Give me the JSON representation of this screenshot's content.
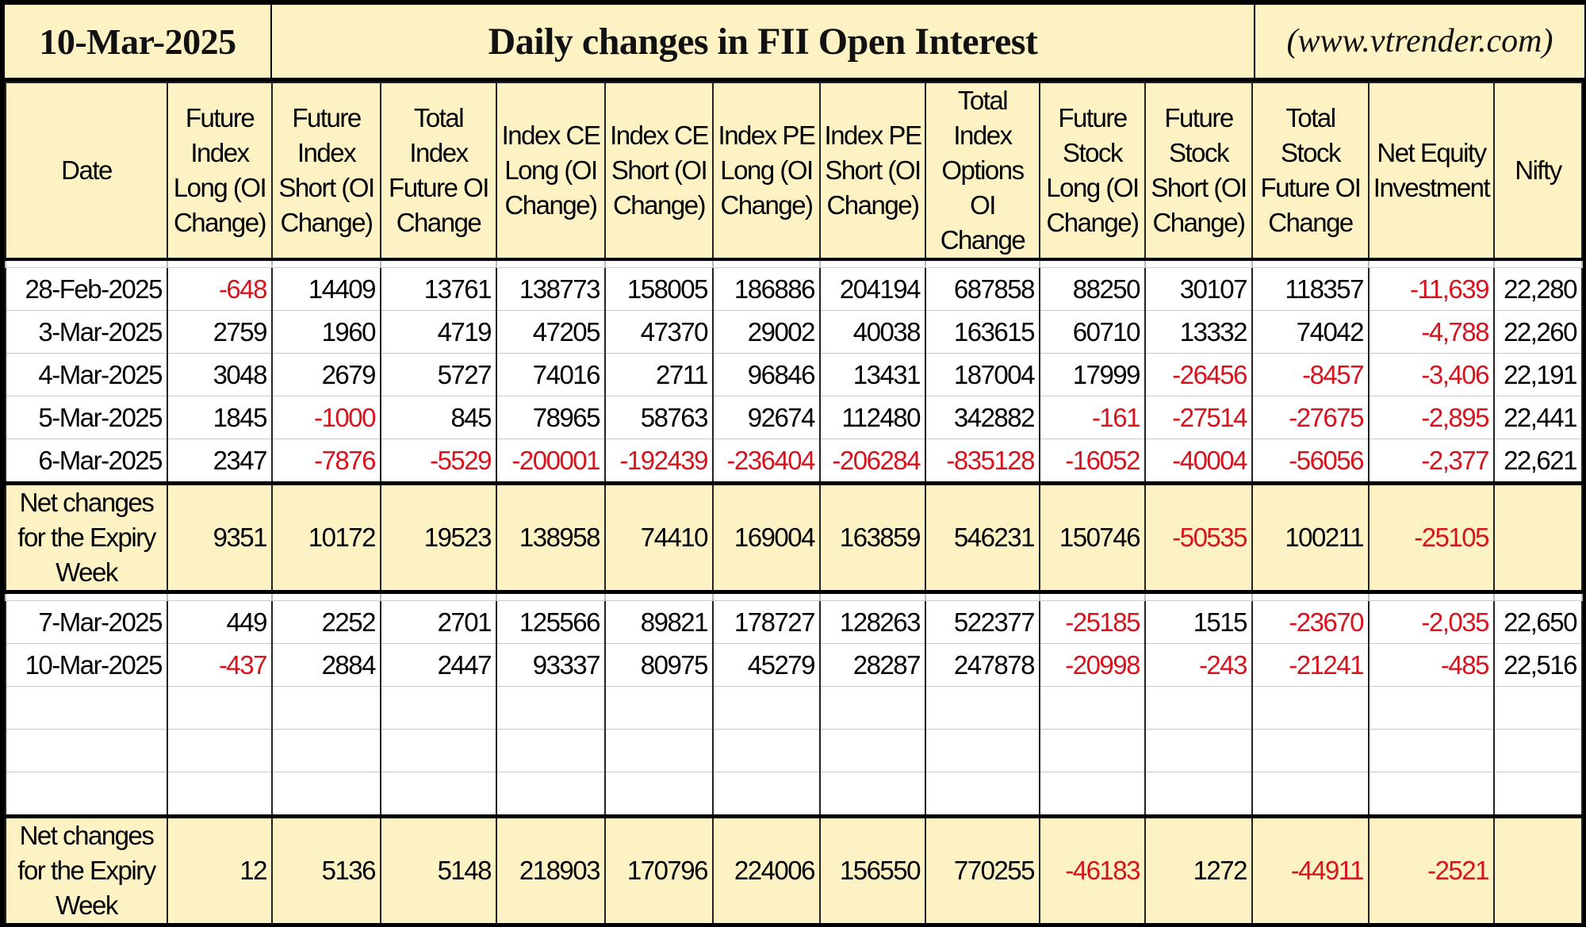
{
  "header": {
    "date": "10-Mar-2025",
    "title": "Daily changes in FII Open Interest",
    "site": "(www.vtrender.com)"
  },
  "columns": [
    "Date",
    "Future Index Long (OI Change)",
    "Future Index Short (OI Change)",
    "Total Index Future OI Change",
    "Index CE Long (OI Change)",
    "Index CE Short (OI Change)",
    "Index PE Long (OI Change)",
    "Index PE Short (OI Change)",
    "Total Index Options OI Change",
    "Future Stock Long (OI Change)",
    "Future Stock Short (OI Change)",
    "Total Stock Future OI Change",
    "Net Equity Investment",
    "Nifty"
  ],
  "week1_rows": [
    [
      "28-Feb-2025",
      "-648",
      "14409",
      "13761",
      "138773",
      "158005",
      "186886",
      "204194",
      "687858",
      "88250",
      "30107",
      "118357",
      "-11,639",
      "22,280"
    ],
    [
      "3-Mar-2025",
      "2759",
      "1960",
      "4719",
      "47205",
      "47370",
      "29002",
      "40038",
      "163615",
      "60710",
      "13332",
      "74042",
      "-4,788",
      "22,260"
    ],
    [
      "4-Mar-2025",
      "3048",
      "2679",
      "5727",
      "74016",
      "2711",
      "96846",
      "13431",
      "187004",
      "17999",
      "-26456",
      "-8457",
      "-3,406",
      "22,191"
    ],
    [
      "5-Mar-2025",
      "1845",
      "-1000",
      "845",
      "78965",
      "58763",
      "92674",
      "112480",
      "342882",
      "-161",
      "-27514",
      "-27675",
      "-2,895",
      "22,441"
    ],
    [
      "6-Mar-2025",
      "2347",
      "-7876",
      "-5529",
      "-200001",
      "-192439",
      "-236404",
      "-206284",
      "-835128",
      "-16052",
      "-40004",
      "-56056",
      "-2,377",
      "22,621"
    ]
  ],
  "week1_summary": [
    "Net changes for the Expiry Week",
    "9351",
    "10172",
    "19523",
    "138958",
    "74410",
    "169004",
    "163859",
    "546231",
    "150746",
    "-50535",
    "100211",
    "-25105",
    ""
  ],
  "week2_rows": [
    [
      "7-Mar-2025",
      "449",
      "2252",
      "2701",
      "125566",
      "89821",
      "178727",
      "128263",
      "522377",
      "-25185",
      "1515",
      "-23670",
      "-2,035",
      "22,650"
    ],
    [
      "10-Mar-2025",
      "-437",
      "2884",
      "2447",
      "93337",
      "80975",
      "45279",
      "28287",
      "247878",
      "-20998",
      "-243",
      "-21241",
      "-485",
      "22,516"
    ]
  ],
  "week2_empty_rows": 3,
  "week2_summary": [
    "Net changes for the Expiry Week",
    "12",
    "5136",
    "5148",
    "218903",
    "170796",
    "224006",
    "156550",
    "770255",
    "-46183",
    "1272",
    "-44911",
    "-2521",
    ""
  ],
  "colors": {
    "header_bg": "#fdf2c4",
    "negative": "#d6141d"
  }
}
